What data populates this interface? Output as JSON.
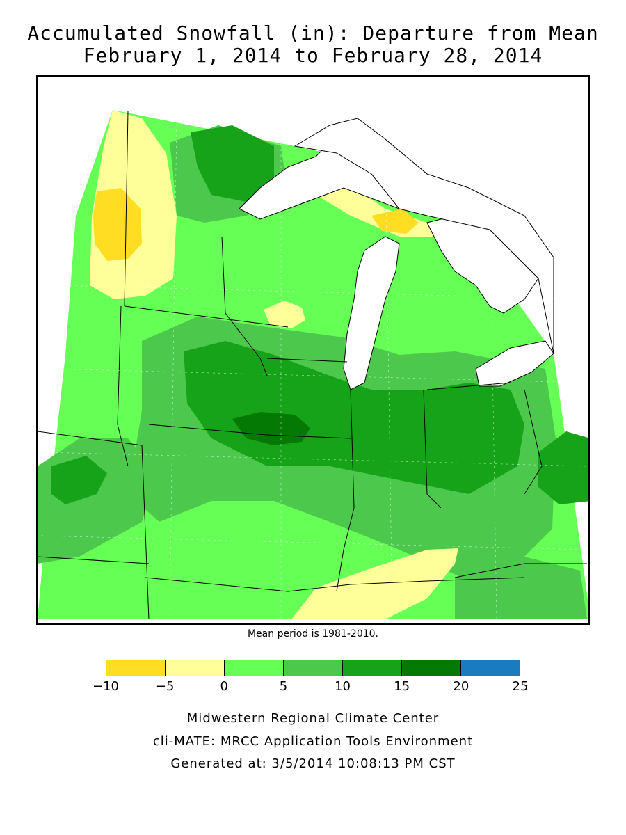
{
  "title": {
    "line1": "Accumulated Snowfall (in): Departure from Mean",
    "line2": "February 1, 2014 to February 28, 2014"
  },
  "map": {
    "region": "Upper Midwest and Great Lakes",
    "base_color": "#66ff55",
    "lake_color": "#ffffff",
    "boundary_color": "#000000"
  },
  "note": "Mean period is 1981-2010.",
  "legend": {
    "ticks": [
      "−10",
      "−5",
      "0",
      "5",
      "10",
      "15",
      "20",
      "25"
    ],
    "swatches": [
      {
        "range": "-10 to -5",
        "color": "#ffdd22"
      },
      {
        "range": "-5 to 0",
        "color": "#ffff99"
      },
      {
        "range": "0 to 5",
        "color": "#66ff55"
      },
      {
        "range": "5 to 10",
        "color": "#4cc94c"
      },
      {
        "range": "10 to 15",
        "color": "#16a31a"
      },
      {
        "range": "15 to 20",
        "color": "#047a04"
      },
      {
        "range": "20 to 25",
        "color": "#1a7bc0"
      }
    ]
  },
  "credits": {
    "org": "Midwestern Regional Climate Center",
    "tool": "cli-MATE: MRCC Application Tools Environment",
    "generated": "Generated at: 3/5/2014 10:08:13 PM CST"
  }
}
